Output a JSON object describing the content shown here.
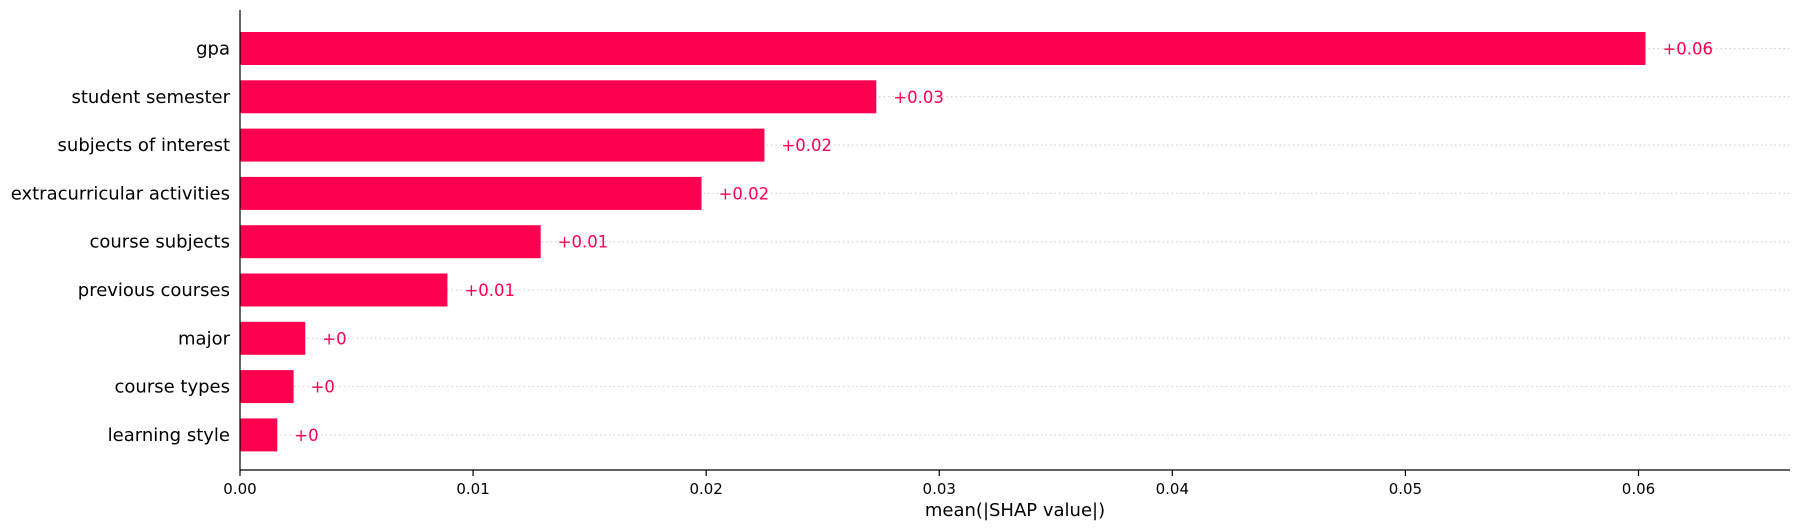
{
  "chart_data": {
    "type": "bar",
    "orientation": "horizontal",
    "categories": [
      "gpa",
      "student semester",
      "subjects of interest",
      "extracurricular activities",
      "course subjects",
      "previous courses",
      "major",
      "course types",
      "learning style"
    ],
    "values": [
      0.0603,
      0.0273,
      0.0225,
      0.0198,
      0.0129,
      0.0089,
      0.0028,
      0.0023,
      0.0016
    ],
    "value_labels": [
      "+0.06",
      "+0.03",
      "+0.02",
      "+0.02",
      "+0.01",
      "+0.01",
      "+0",
      "+0",
      "+0"
    ],
    "xlabel": "mean(|SHAP value|)",
    "xlim": [
      0,
      0.0665
    ],
    "xticks": [
      0.0,
      0.01,
      0.02,
      0.03,
      0.04,
      0.05,
      0.06
    ],
    "xtick_labels": [
      "0.00",
      "0.01",
      "0.02",
      "0.03",
      "0.04",
      "0.05",
      "0.06"
    ],
    "bar_color": "#ff0051",
    "gridlines": "dotted horizontal per category",
    "legend": "none"
  }
}
